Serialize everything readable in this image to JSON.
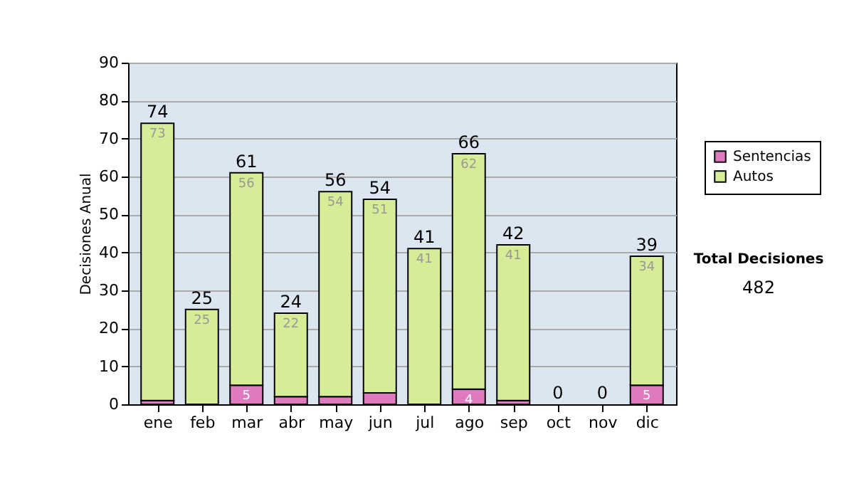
{
  "chart_data": {
    "type": "bar",
    "stacked": true,
    "ylabel": "Decisiones Anual",
    "categories": [
      "ene",
      "feb",
      "mar",
      "abr",
      "may",
      "jun",
      "jul",
      "ago",
      "sep",
      "oct",
      "nov",
      "dic"
    ],
    "series": [
      {
        "name": "Sentencias",
        "color": "#e07ac0",
        "values": [
          1,
          0,
          5,
          2,
          2,
          3,
          0,
          4,
          1,
          0,
          0,
          5
        ],
        "value_labels": [
          null,
          null,
          "5",
          null,
          null,
          null,
          null,
          "4",
          null,
          null,
          null,
          "5"
        ]
      },
      {
        "name": "Autos",
        "color": "#d6ec96",
        "values": [
          73,
          25,
          56,
          22,
          54,
          51,
          41,
          62,
          41,
          0,
          0,
          34
        ],
        "value_labels": [
          "73",
          "25",
          "56",
          "22",
          "54",
          "51",
          "41",
          "62",
          "41",
          null,
          null,
          "34"
        ]
      }
    ],
    "totals": [
      "74",
      "25",
      "61",
      "24",
      "56",
      "54",
      "41",
      "66",
      "42",
      "0",
      "0",
      "39"
    ],
    "ylim": [
      0,
      90
    ],
    "yticks": [
      0,
      10,
      20,
      30,
      40,
      50,
      60,
      70,
      80,
      90
    ],
    "grid": "y",
    "legend": "right",
    "annotations": [
      "Total Decisiones",
      "482"
    ]
  }
}
